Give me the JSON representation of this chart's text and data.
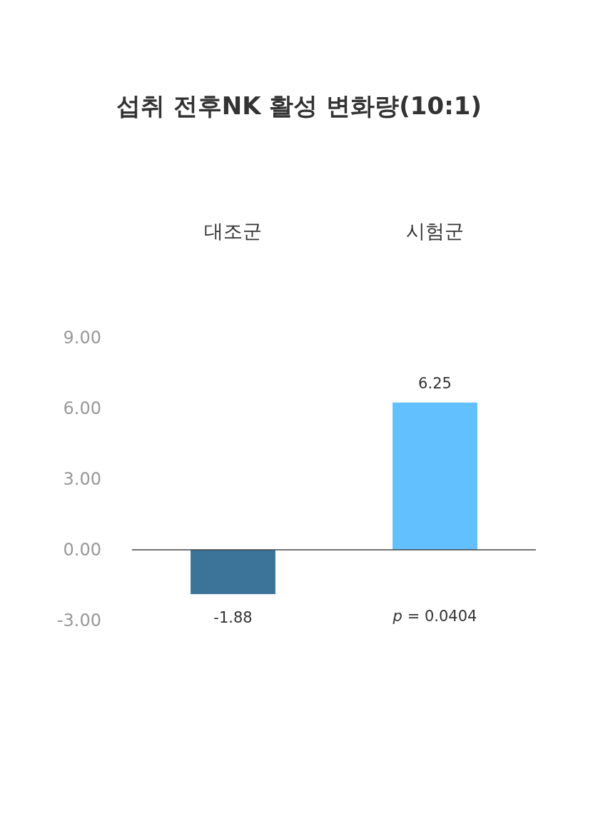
{
  "chart_data": {
    "type": "bar",
    "title": "섭취 전후NK 활성 변화량(10:1)",
    "categories": [
      "대조군",
      "시험군"
    ],
    "values": [
      -1.88,
      6.25
    ],
    "colors": [
      "#3b7399",
      "#62c0ff"
    ],
    "ylim": [
      -3,
      9
    ],
    "yticks": [
      {
        "value": -3,
        "label": "-3.00"
      },
      {
        "value": 0,
        "label": "0.00"
      },
      {
        "value": 3,
        "label": "3.00"
      },
      {
        "value": 6,
        "label": "6.00"
      },
      {
        "value": 9,
        "label": "9.00"
      }
    ],
    "data_labels": true,
    "annotations": [
      "p = 0.0404"
    ]
  }
}
